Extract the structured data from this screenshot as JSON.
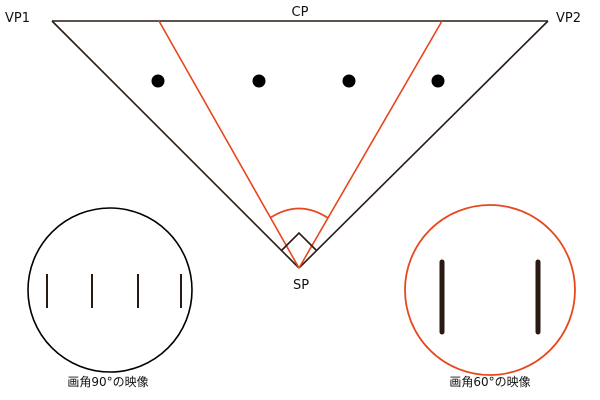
{
  "labels": {
    "vp1": "VP1",
    "cp": "CP",
    "vp2": "VP2",
    "sp": "SP"
  },
  "captions": {
    "wide": "画角90°の映像",
    "narrow": "画角60°の映像"
  },
  "colors": {
    "line": "#2a1a14",
    "accent": "#e8461c",
    "bar": "#2a1a14",
    "background": "#ffffff"
  }
}
